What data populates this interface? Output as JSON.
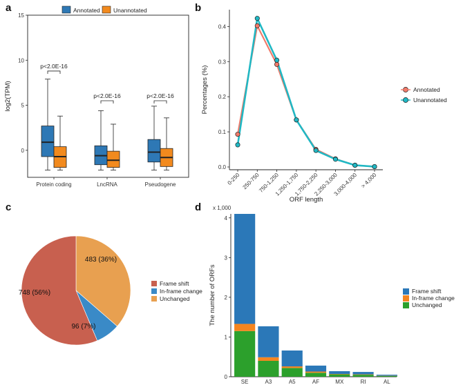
{
  "colors": {
    "annotated": "#2e78b5",
    "unannotated": "#f28a1e",
    "lineA": "#f07a6a",
    "lineB": "#20b8c4",
    "frame_shift": "#c8604f",
    "inframe": "#3a8ac7",
    "unchanged": "#e8a050",
    "bar_fs": "#2b78b8",
    "bar_in": "#f5851f",
    "bar_un": "#2ca02c"
  },
  "panels": {
    "a": "a",
    "b": "b",
    "c": "c",
    "d": "d"
  },
  "chart_data": [
    {
      "id": "a",
      "type": "box",
      "legend": [
        "Annotated",
        "Unannotated"
      ],
      "ylabel": "log2(TPM)",
      "ylim": [
        -3,
        15
      ],
      "yticks": [
        0,
        5,
        10,
        15
      ],
      "categories": [
        "Protein coding",
        "LncRNA",
        "Pseudogene"
      ],
      "pvalue": [
        "p<2.0E-16",
        "p<2.0E-16",
        "p<2.0E-16"
      ],
      "boxes": [
        {
          "series": "Annotated",
          "category": "Protein coding",
          "min": -2.2,
          "q1": -0.7,
          "median": 0.9,
          "q3": 2.7,
          "max": 7.9
        },
        {
          "series": "Unannotated",
          "category": "Protein coding",
          "min": -2.2,
          "q1": -1.9,
          "median": -0.7,
          "q3": 0.4,
          "max": 3.8
        },
        {
          "series": "Annotated",
          "category": "LncRNA",
          "min": -2.2,
          "q1": -1.6,
          "median": -0.6,
          "q3": 0.5,
          "max": 4.4
        },
        {
          "series": "Unannotated",
          "category": "LncRNA",
          "min": -2.2,
          "q1": -1.9,
          "median": -1.1,
          "q3": -0.1,
          "max": 2.9
        },
        {
          "series": "Annotated",
          "category": "Pseudogene",
          "min": -2.2,
          "q1": -1.3,
          "median": -0.2,
          "q3": 1.2,
          "max": 4.9
        },
        {
          "series": "Unannotated",
          "category": "Pseudogene",
          "min": -2.2,
          "q1": -1.8,
          "median": -0.8,
          "q3": 0.2,
          "max": 3.6
        }
      ]
    },
    {
      "id": "b",
      "type": "line",
      "xlabel": "ORF length",
      "ylabel": "Percentages (%)",
      "ylim": [
        0,
        0.44
      ],
      "yticks": [
        0.0,
        0.1,
        0.2,
        0.3,
        0.4
      ],
      "ytick_labels": [
        "0.0",
        "0.1",
        "0.2",
        "0.3",
        "0.4"
      ],
      "categories": [
        "0-250",
        "250-750",
        "750-1,250",
        "1,250-1,750",
        "1,750-2,250",
        "2,250-3,000",
        "3,000-4,000",
        "> 4,000"
      ],
      "series": [
        {
          "name": "Annotated",
          "values": [
            0.093,
            0.402,
            0.292,
            0.134,
            0.05,
            0.023,
            0.005,
            0.001
          ]
        },
        {
          "name": "Unannotated",
          "values": [
            0.063,
            0.423,
            0.304,
            0.134,
            0.047,
            0.022,
            0.005,
            0.001
          ]
        }
      ]
    },
    {
      "id": "c",
      "type": "pie",
      "slices": [
        {
          "name": "Frame shift",
          "value": 748,
          "label": "748 (56%)"
        },
        {
          "name": "In-frame change",
          "value": 96,
          "label": "96 (7%)"
        },
        {
          "name": "Unchanged",
          "value": 483,
          "label": "483 (36%)"
        }
      ],
      "legend": [
        "Frame shift",
        "In-frame change",
        "Unchanged"
      ]
    },
    {
      "id": "d",
      "type": "bar",
      "stacked": true,
      "ylabel": "The number of ORFs",
      "yscale_note": "x 1,000",
      "ylim": [
        0,
        4.1
      ],
      "yticks": [
        0,
        1,
        2,
        3,
        4
      ],
      "categories": [
        "SE",
        "A3",
        "A5",
        "AF",
        "MX",
        "RI",
        "AL"
      ],
      "series": [
        {
          "name": "Unchanged",
          "values": [
            1.15,
            0.4,
            0.22,
            0.1,
            0.06,
            0.05,
            0.02
          ]
        },
        {
          "name": "In-frame change",
          "values": [
            0.18,
            0.09,
            0.04,
            0.03,
            0.01,
            0.01,
            0.005
          ]
        },
        {
          "name": "Frame shift",
          "values": [
            2.77,
            0.78,
            0.4,
            0.15,
            0.07,
            0.06,
            0.025
          ]
        }
      ],
      "legend": [
        "Frame shift",
        "In-frame change",
        "Unchanged"
      ]
    }
  ]
}
